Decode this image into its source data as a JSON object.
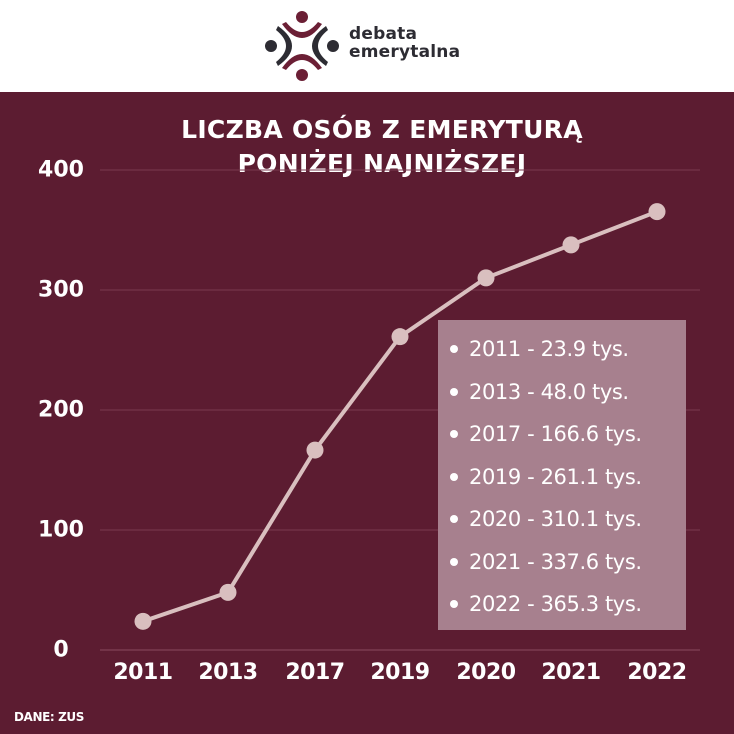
{
  "header": {
    "brand_line1": "debata",
    "brand_line2": "emerytalna",
    "logo_icon": "debata-emerytalna-logo-icon",
    "colors": {
      "logo_maroon": "#6b1f35",
      "logo_dark": "#2d2c33",
      "background": "#ffffff"
    }
  },
  "title": {
    "line1": "LICZBA OSÓB Z EMERYTURĄ",
    "line2": "PONIŻEJ NAJNIŻSZEJ"
  },
  "legend": {
    "items": [
      "2011 - 23.9 tys.",
      "2013 - 48.0 tys.",
      "2017 - 166.6 tys.",
      "2019 - 261.1 tys.",
      "2020 - 310.1 tys.",
      "2021 - 337.6 tys.",
      "2022 - 365.3 tys."
    ]
  },
  "source": "DANE: ZUS",
  "colors": {
    "background": "#5c1c31",
    "line": "#d9bfbf",
    "gridline": "#7a3a4f",
    "legend_box": "#a7808e",
    "text": "#ffffff"
  },
  "chart_data": {
    "type": "line",
    "title": "LICZBA OSÓB Z EMERYTURĄ PONIŻEJ NAJNIŻSZEJ",
    "xlabel": "",
    "ylabel": "",
    "categories": [
      "2011",
      "2013",
      "2017",
      "2019",
      "2020",
      "2021",
      "2022"
    ],
    "series": [
      {
        "name": "Liczba osób (tys.)",
        "values": [
          23.9,
          48.0,
          166.6,
          261.1,
          310.1,
          337.6,
          365.3
        ]
      }
    ],
    "yticks": [
      0,
      100,
      200,
      300,
      400
    ],
    "ylim": [
      0,
      400
    ],
    "grid": true,
    "legend_position": "inside-right",
    "annotations": [
      "2011 - 23.9 tys.",
      "2013 - 48.0 tys.",
      "2017 - 166.6 tys.",
      "2019 - 261.1 tys.",
      "2020 - 310.1 tys.",
      "2021 - 337.6 tys.",
      "2022 - 365.3 tys."
    ],
    "source": "DANE: ZUS"
  }
}
